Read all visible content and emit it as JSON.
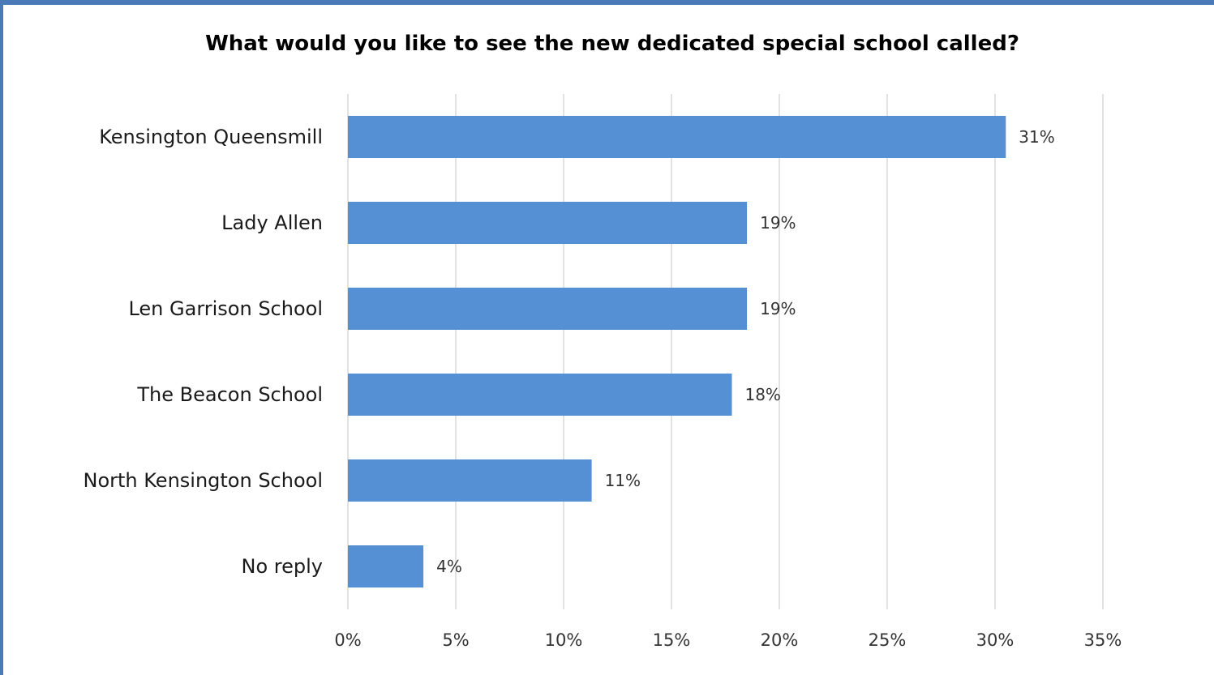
{
  "chart_data": {
    "type": "bar",
    "orientation": "horizontal",
    "title": "What would you like to see the new dedicated special school called?",
    "categories": [
      "Kensington Queensmill",
      "Lady Allen",
      "Len Garrison School",
      "The Beacon School",
      "North Kensington School",
      "No reply"
    ],
    "values": [
      30.5,
      18.5,
      18.5,
      17.8,
      11.3,
      3.5
    ],
    "data_labels": [
      "31%",
      "19%",
      "19%",
      "18%",
      "11%",
      "4%"
    ],
    "xlim": [
      0,
      35
    ],
    "xticks": [
      0,
      5,
      10,
      15,
      20,
      25,
      30,
      35
    ],
    "xtick_labels": [
      "0%",
      "5%",
      "10%",
      "15%",
      "20%",
      "25%",
      "30%",
      "35%"
    ],
    "grid": "vertical",
    "legend": "none",
    "bar_color": "#5590d5",
    "grid_color": "#d9d9d9",
    "frame_color": "#4a7ab8"
  }
}
